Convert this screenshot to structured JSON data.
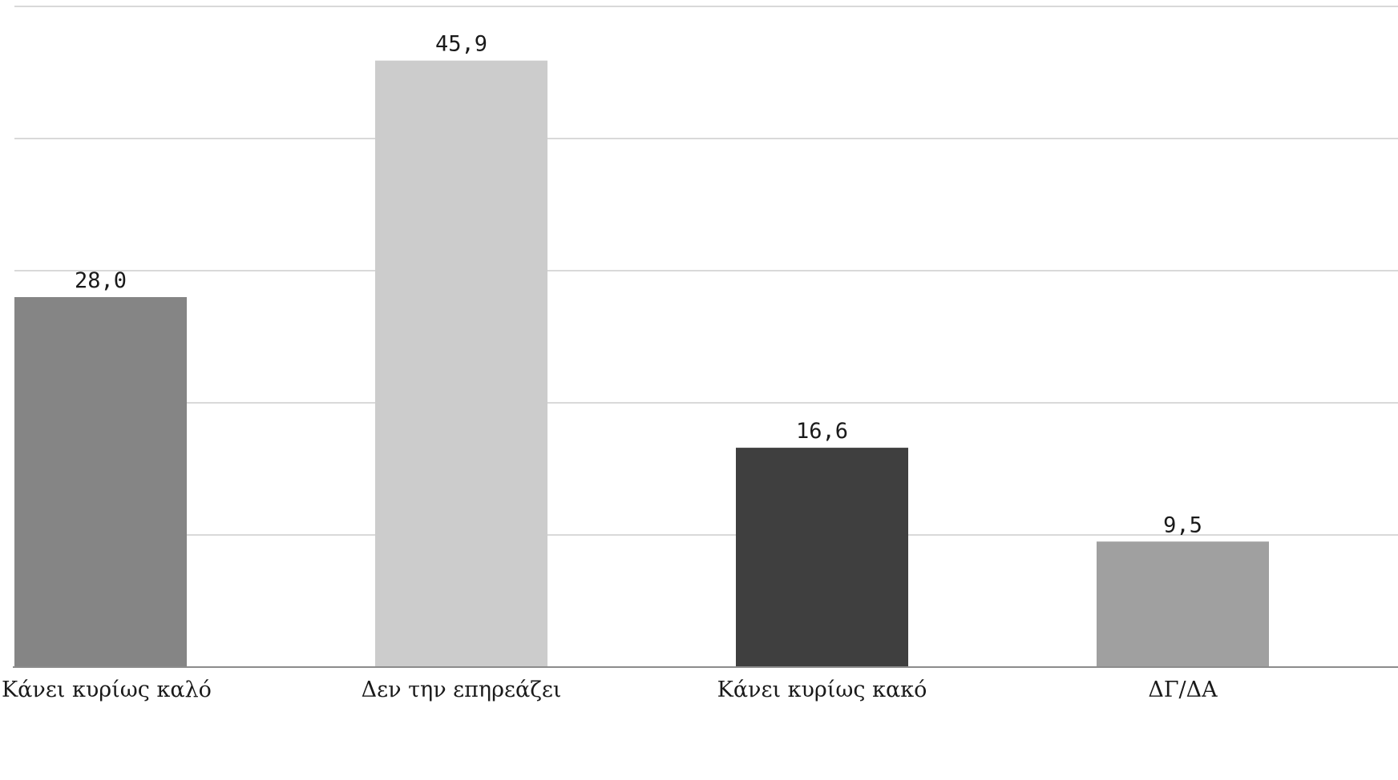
{
  "chart_data": {
    "type": "bar",
    "categories": [
      "Κάνει κυρίως καλό",
      "Δεν την επηρεάζει",
      "Κάνει κυρίως κακό",
      "ΔΓ/ΔΑ"
    ],
    "values": [
      28.0,
      45.9,
      16.6,
      9.5
    ],
    "data_labels": [
      "28,0",
      "45,9",
      "16,6",
      "9,5"
    ],
    "colors": [
      "#858585",
      "#cccccc",
      "#3f3f3f",
      "#a0a0a0"
    ],
    "ylim": [
      0,
      50
    ],
    "grid": true,
    "gridline_values": [
      10,
      20,
      30,
      40,
      50
    ],
    "title": "",
    "xlabel": "",
    "ylabel": ""
  }
}
